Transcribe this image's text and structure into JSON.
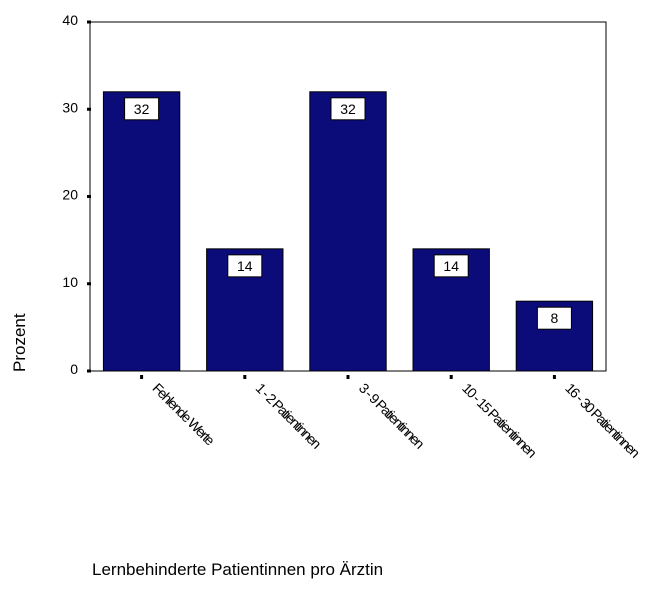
{
  "chart_data": {
    "type": "bar",
    "categories": [
      "Fehlende Werte",
      "1 - 2 Patientinnen",
      "3 - 9 Patientinnen",
      "10 - 15 Patientinnen",
      "16 - 30 Patientinnen"
    ],
    "values": [
      32,
      14,
      32,
      14,
      8
    ],
    "data_labels": [
      "32",
      "14",
      "32",
      "14",
      "8"
    ],
    "xlabel": "Lernbehinderte Patientinnen pro Ärztin",
    "ylabel": "Prozent",
    "ylim": [
      0,
      40
    ],
    "yticks": [
      0,
      10,
      20,
      30,
      40
    ],
    "bar_color": "#0b0b7a",
    "grid": false,
    "legend": "none"
  }
}
